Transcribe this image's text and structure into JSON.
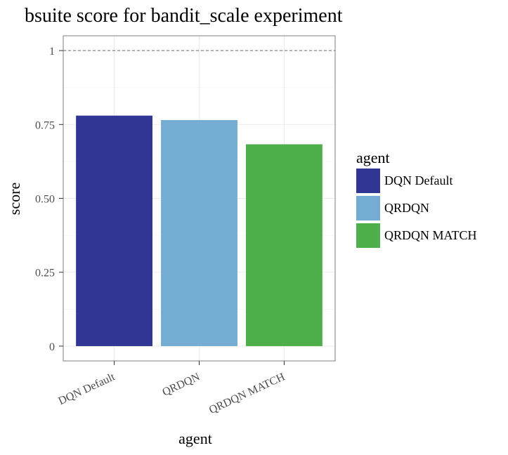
{
  "chart_data": {
    "type": "bar",
    "title": "bsuite score for bandit_scale experiment",
    "xlabel": "agent",
    "ylabel": "score",
    "categories": [
      "DQN Default",
      "QRDQN",
      "QRDQN MATCH"
    ],
    "values": [
      0.78,
      0.765,
      0.683
    ],
    "colors": [
      "#313695",
      "#74add1",
      "#4daf4a"
    ],
    "ylim": [
      -0.05,
      1.05
    ],
    "yticks": [
      0,
      0.25,
      0.5,
      0.75,
      1
    ],
    "ytick_labels": [
      "0",
      "0.25",
      "0.50",
      "0.75",
      "1"
    ],
    "reference_line": {
      "y": 1,
      "style": "dashed"
    },
    "grid": true,
    "legend": {
      "title": "agent",
      "position": "right",
      "entries": [
        "DQN Default",
        "QRDQN",
        "QRDQN MATCH"
      ]
    }
  }
}
